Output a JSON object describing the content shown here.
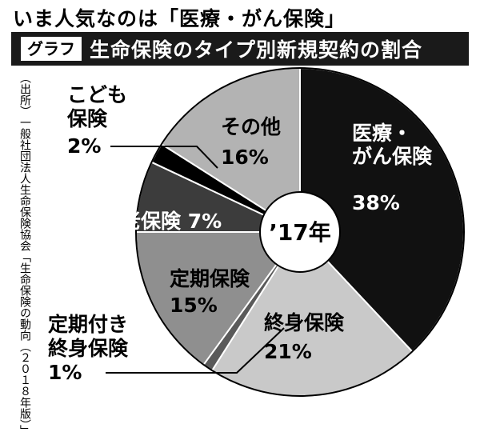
{
  "headline": "いま人気なのは「医療・がん保険」",
  "badge": "グラフ",
  "chart_title": "生命保険のタイプ別新規契約の割合",
  "source": "（出所）一般社団法人生命保険協会「生命保険の動向（２０１８年版）」",
  "center_label": "’17年",
  "chart_data": {
    "type": "pie",
    "title": "生命保険のタイプ別新規契約の割合",
    "slices": [
      {
        "label": "医療・がん保険",
        "value": 38,
        "display": "38%",
        "color": "#111111"
      },
      {
        "label": "終身保険",
        "value": 21,
        "display": "21%",
        "color": "#c9c9c9"
      },
      {
        "label": "定期付き終身保険",
        "value": 1,
        "display": "1%",
        "color": "#5a5a5a"
      },
      {
        "label": "定期保険",
        "value": 15,
        "display": "15%",
        "color": "#8f8f8f"
      },
      {
        "label": "養老保険",
        "value": 7,
        "display": "7%",
        "color": "#3c3c3c"
      },
      {
        "label": "こども保険",
        "value": 2,
        "display": "2%",
        "color": "#000000"
      },
      {
        "label": "その他",
        "value": 16,
        "display": "16%",
        "color": "#b3b3b3"
      }
    ]
  }
}
